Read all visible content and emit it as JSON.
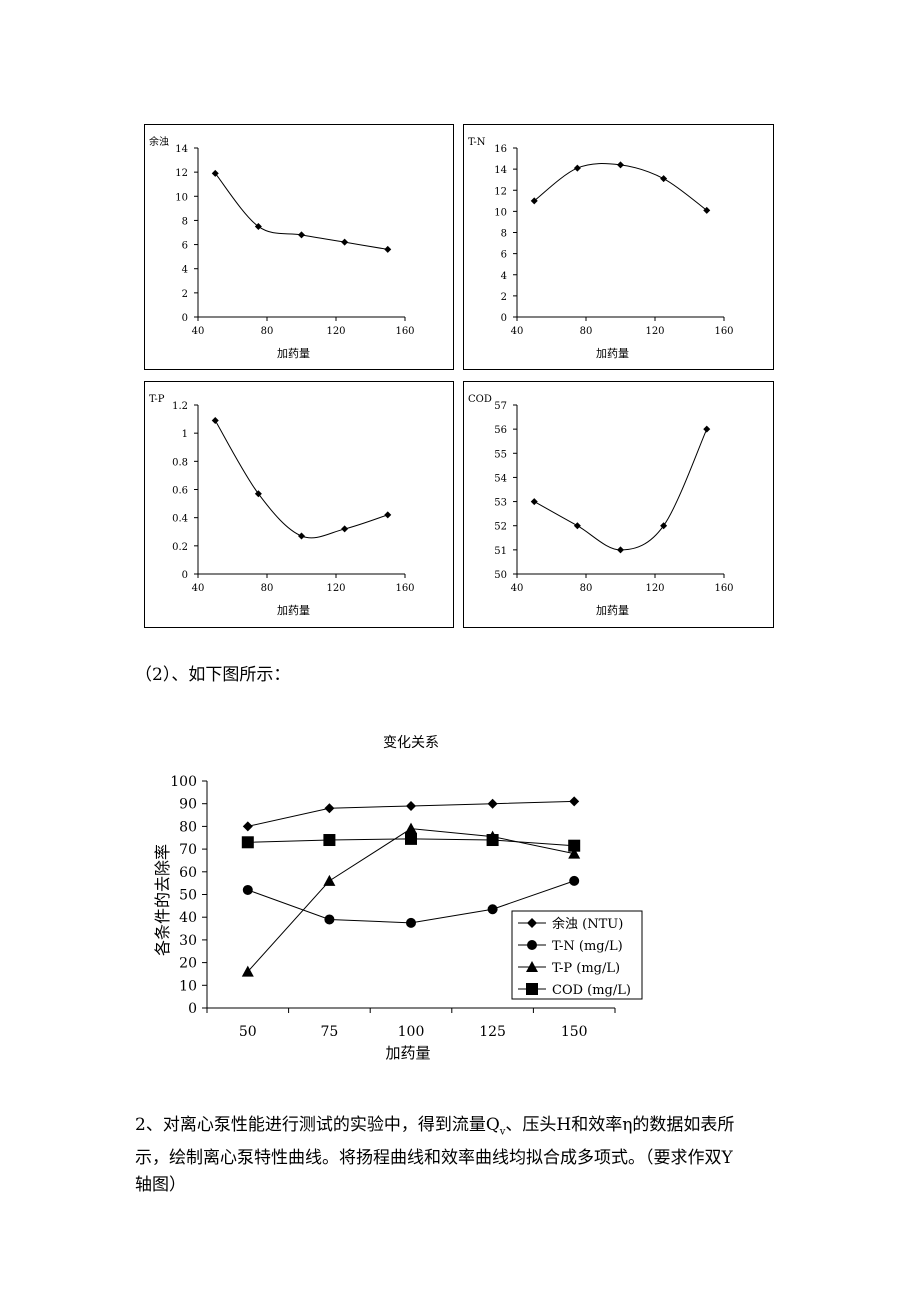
{
  "colors": {
    "line": "#000000",
    "background": "#ffffff"
  },
  "chart_data": [
    {
      "type": "line",
      "ylabel": "余浊",
      "xlabel": "加药量",
      "xlim": [
        40,
        160
      ],
      "xticks": [
        40,
        80,
        120,
        160
      ],
      "ylim": [
        0,
        14
      ],
      "yticks": [
        0,
        2,
        4,
        6,
        8,
        10,
        12,
        14
      ],
      "ytick_labels": [
        "0",
        "2",
        "4",
        "6",
        "8",
        "10",
        "12",
        "14"
      ],
      "x": [
        50,
        75,
        100,
        125,
        150
      ],
      "y": [
        11.9,
        7.5,
        6.8,
        6.2,
        5.6
      ],
      "smooth": true,
      "marker": "diamond"
    },
    {
      "type": "line",
      "ylabel": "T-N",
      "xlabel": "加药量",
      "xlim": [
        40,
        160
      ],
      "xticks": [
        40,
        80,
        120,
        160
      ],
      "ylim": [
        0,
        16
      ],
      "yticks": [
        0,
        2,
        4,
        6,
        8,
        10,
        12,
        14,
        16
      ],
      "ytick_labels": [
        "0",
        "2",
        "4",
        "6",
        "8",
        "10",
        "12",
        "14",
        "16"
      ],
      "x": [
        50,
        75,
        100,
        125,
        150
      ],
      "y": [
        11.0,
        14.1,
        14.4,
        13.1,
        10.1
      ],
      "smooth": true,
      "marker": "diamond"
    },
    {
      "type": "line",
      "ylabel": "T-P",
      "xlabel": "加药量",
      "xlim": [
        40,
        160
      ],
      "xticks": [
        40,
        80,
        120,
        160
      ],
      "ylim": [
        0,
        1.2
      ],
      "yticks": [
        0,
        0.2,
        0.4,
        0.6,
        0.8,
        1,
        1.2
      ],
      "ytick_labels": [
        "0",
        "0.2",
        "0.4",
        "0.6",
        "0.8",
        "1",
        "1.2"
      ],
      "x": [
        50,
        75,
        100,
        125,
        150
      ],
      "y": [
        1.09,
        0.57,
        0.27,
        0.32,
        0.42
      ],
      "smooth": true,
      "marker": "diamond"
    },
    {
      "type": "line",
      "ylabel": "COD",
      "xlabel": "加药量",
      "xlim": [
        40,
        160
      ],
      "xticks": [
        40,
        80,
        120,
        160
      ],
      "ylim": [
        50,
        57
      ],
      "yticks": [
        50,
        51,
        52,
        53,
        54,
        55,
        56,
        57
      ],
      "ytick_labels": [
        "50",
        "51",
        "52",
        "53",
        "54",
        "55",
        "56",
        "57"
      ],
      "x": [
        50,
        75,
        100,
        125,
        150
      ],
      "y": [
        53,
        52,
        51,
        52,
        56
      ],
      "smooth": true,
      "marker": "diamond"
    },
    {
      "type": "line",
      "title": "变化关系",
      "xlabel": "加药量",
      "ylabel": "各条件的去除率",
      "categories": [
        "50",
        "75",
        "100",
        "125",
        "150"
      ],
      "ylim": [
        0,
        100
      ],
      "yticks": [
        0,
        10,
        20,
        30,
        40,
        50,
        60,
        70,
        80,
        90,
        100
      ],
      "legend_position": "bottom-right",
      "series": [
        {
          "name": "余浊 (NTU)",
          "marker": "diamond",
          "values": [
            80,
            88,
            89,
            90,
            91
          ]
        },
        {
          "name": "T-N (mg/L)",
          "marker": "circle",
          "values": [
            52,
            39,
            37.5,
            43.5,
            56
          ]
        },
        {
          "name": "T-P (mg/L)",
          "marker": "triangle",
          "values": [
            16,
            56,
            79,
            75.5,
            68
          ]
        },
        {
          "name": "COD (mg/L)",
          "marker": "square",
          "values": [
            73,
            74,
            74.5,
            74,
            71.5
          ]
        }
      ]
    }
  ],
  "text": {
    "caption2": "（2）、如下图所示：",
    "para_line1": "2、对离心泵性能进行测试的实验中，得到流量Q",
    "para_sub": "v",
    "para_line1_rest": "、压头H和效率η的数据如表所",
    "para_line2": "示，绘制离心泵特性曲线。将扬程曲线和效率曲线均拟合成多项式。（要求作双Y",
    "para_line3": "轴图）"
  }
}
